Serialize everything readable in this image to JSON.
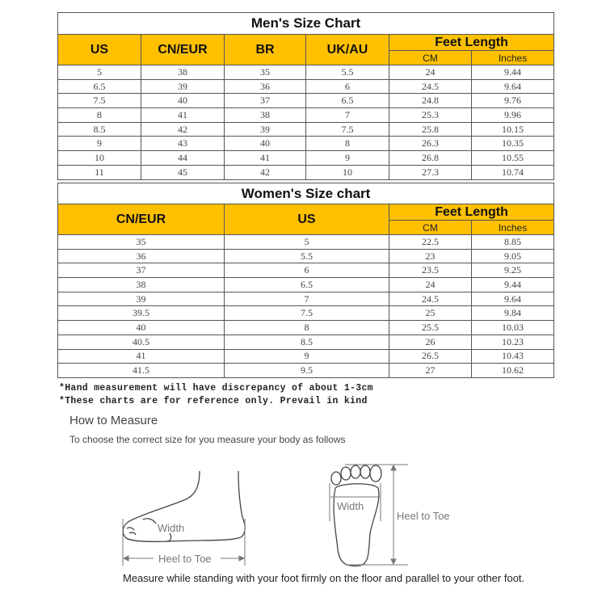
{
  "men": {
    "title": "Men's Size Chart",
    "headers": [
      "US",
      "CN/EUR",
      "BR",
      "UK/AU"
    ],
    "feet_length": "Feet Length",
    "sub_headers": [
      "CM",
      "Inches"
    ],
    "rows": [
      [
        "5",
        "38",
        "35",
        "5.5",
        "24",
        "9.44"
      ],
      [
        "6.5",
        "39",
        "36",
        "6",
        "24.5",
        "9.64"
      ],
      [
        "7.5",
        "40",
        "37",
        "6.5",
        "24.8",
        "9.76"
      ],
      [
        "8",
        "41",
        "38",
        "7",
        "25.3",
        "9.96"
      ],
      [
        "8.5",
        "42",
        "39",
        "7.5",
        "25.8",
        "10.15"
      ],
      [
        "9",
        "43",
        "40",
        "8",
        "26.3",
        "10.35"
      ],
      [
        "10",
        "44",
        "41",
        "9",
        "26.8",
        "10.55"
      ],
      [
        "11",
        "45",
        "42",
        "10",
        "27.3",
        "10.74"
      ]
    ]
  },
  "women": {
    "title": "Women's Size chart",
    "headers": [
      "CN/EUR",
      "US"
    ],
    "feet_length": "Feet Length",
    "sub_headers": [
      "CM",
      "Inches"
    ],
    "rows": [
      [
        "35",
        "5",
        "22.5",
        "8.85"
      ],
      [
        "36",
        "5.5",
        "23",
        "9.05"
      ],
      [
        "37",
        "6",
        "23.5",
        "9.25"
      ],
      [
        "38",
        "6.5",
        "24",
        "9.44"
      ],
      [
        "39",
        "7",
        "24.5",
        "9.64"
      ],
      [
        "39.5",
        "7.5",
        "25",
        "9.84"
      ],
      [
        "40",
        "8",
        "25.5",
        "10.03"
      ],
      [
        "40.5",
        "8.5",
        "26",
        "10.23"
      ],
      [
        "41",
        "9",
        "26.5",
        "10.43"
      ],
      [
        "41.5",
        "9.5",
        "27",
        "10.62"
      ]
    ]
  },
  "notes": [
    "*Hand measurement will have discrepancy of about 1-3cm",
    "*These charts are for reference only. Prevail in kind"
  ],
  "how_to": {
    "title": "How to Measure",
    "subtitle": "To choose the correct size for you measure your body as follows",
    "side_view": {
      "width_label": "Width",
      "length_label": "Heel to Toe"
    },
    "sole_view": {
      "width_label": "Width",
      "length_label": "Heel to Toe"
    },
    "caption": "Measure while standing with your foot firmly on the floor and parallel to your other foot."
  },
  "colors": {
    "header_bg": "#FFC000",
    "border": "#555555"
  }
}
